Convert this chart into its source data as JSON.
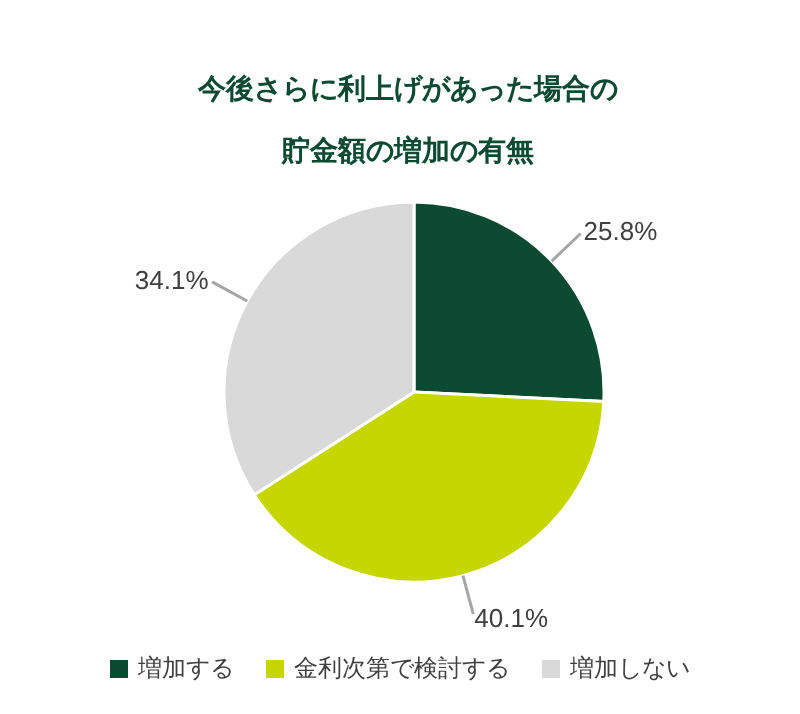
{
  "chart_data": {
    "type": "pie",
    "title": "今後さらに利上げがあった場合の貯金額の増加の有無",
    "categories": [
      "増加する",
      "金利次第で検討する",
      "増加しない"
    ],
    "values": [
      25.8,
      40.1,
      34.1
    ],
    "colors": [
      "#0d4a32",
      "#c5d600",
      "#d9d9d9"
    ],
    "value_labels": [
      "25.8%",
      "40.1%",
      "34.1%"
    ],
    "legend": "bottom"
  }
}
